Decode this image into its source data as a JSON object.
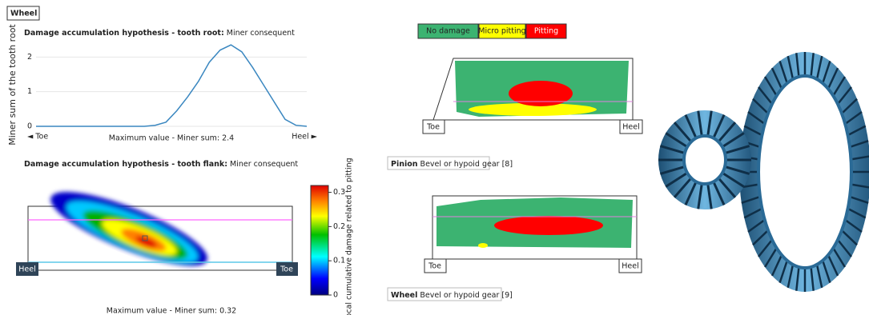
{
  "panel_label": "Wheel",
  "root_chart": {
    "type": "line",
    "title_bold": "Damage accumulation hypothesis - tooth root:",
    "title_rest": " Miner consequent",
    "y_label": "Miner sum of the tooth root",
    "x_left": "◄ Toe",
    "x_right": "Heel ►",
    "caption": "Maximum value - Miner sum: 2.4",
    "color": "#3a87c0",
    "ylim": [
      0,
      2.4
    ],
    "yticks": [
      0,
      1,
      2
    ],
    "grid": true,
    "values": [
      0,
      0,
      0,
      0,
      0,
      0,
      0,
      0,
      0,
      0,
      0,
      0.03,
      0.12,
      0.45,
      0.85,
      1.3,
      1.85,
      2.2,
      2.35,
      2.15,
      1.7,
      1.2,
      0.7,
      0.2,
      0.03,
      0
    ]
  },
  "flank_chart": {
    "type": "heatmap",
    "title_bold": "Damage accumulation hypothesis - tooth flank:",
    "title_rest": " Miner consequent",
    "colorbar_label": "Local cumulative damage related to pitting",
    "clim": [
      0,
      0.32
    ],
    "cticks": [
      0,
      0.1,
      0.2,
      0.3
    ],
    "left_label": "Heel",
    "right_label": "Toe",
    "caption": "Maximum value - Miner sum: 0.32"
  },
  "legend": [
    {
      "label": "No damage",
      "color": "#3cb371"
    },
    {
      "label": "Micro pitting",
      "color": "#ffff00"
    },
    {
      "label": "Pitting",
      "color": "#ff0000"
    }
  ],
  "pinion": {
    "toe": "Toe",
    "heel": "Heel",
    "caption_bold": "Pinion",
    "caption_rest": " Bevel or hypoid gear [8]"
  },
  "wheel": {
    "toe": "Toe",
    "heel": "Heel",
    "caption_bold": "Wheel",
    "caption_rest": " Bevel or hypoid gear [9]"
  }
}
